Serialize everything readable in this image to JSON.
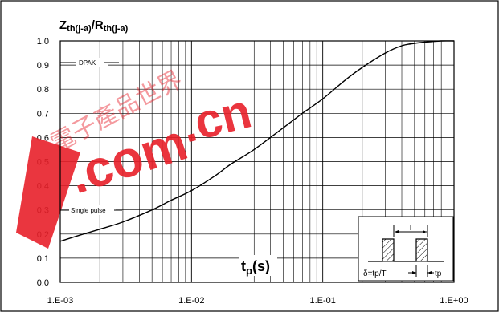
{
  "chart_data": {
    "type": "line",
    "title": "",
    "ylabel": {
      "main1": "Z",
      "sub1": "th(j-a)",
      "sep": "/R",
      "sub2": "th(j-a)"
    },
    "xlabel": {
      "main": "t",
      "sub": "p",
      "unit": "(s)"
    },
    "x_scale": "log",
    "xlim": [
      0.001,
      1
    ],
    "ylim": [
      0,
      1.0
    ],
    "x_ticks": [
      0.001,
      0.01,
      0.1,
      1
    ],
    "x_tick_labels": [
      "1.E-03",
      "1.E-02",
      "1.E-01",
      "1.E+00"
    ],
    "y_ticks": [
      0.0,
      0.1,
      0.2,
      0.3,
      0.4,
      0.5,
      0.6,
      0.7,
      0.8,
      0.9,
      1.0
    ],
    "y_tick_labels": [
      "0.0",
      "0.1",
      "0.2",
      "0.3",
      "0.4",
      "0.5",
      "0.6",
      "0.7",
      "0.8",
      "0.9",
      "1.0"
    ],
    "grid": true,
    "series": [
      {
        "x": [
          0.001,
          0.0015,
          0.002,
          0.003,
          0.005,
          0.007,
          0.01,
          0.015,
          0.02,
          0.03,
          0.05,
          0.07,
          0.1,
          0.15,
          0.2,
          0.3,
          0.4,
          0.5,
          0.6,
          0.8,
          1.0
        ],
        "y": [
          0.17,
          0.2,
          0.22,
          0.25,
          0.3,
          0.34,
          0.38,
          0.44,
          0.49,
          0.55,
          0.64,
          0.7,
          0.76,
          0.84,
          0.89,
          0.95,
          0.98,
          0.99,
          0.995,
          1.0,
          1.0
        ]
      }
    ],
    "annotations": {
      "dpak": "DPAK",
      "single_pulse": "Single pulse"
    },
    "inset": {
      "period_label": "T",
      "duty_formula": "δ=tp/T",
      "pulse_label": "tp"
    }
  },
  "watermark": {
    "chinese": "電子產品世界",
    "dot_com": ".com",
    "dot_cn": ".cn",
    "color": "#e8202a"
  }
}
